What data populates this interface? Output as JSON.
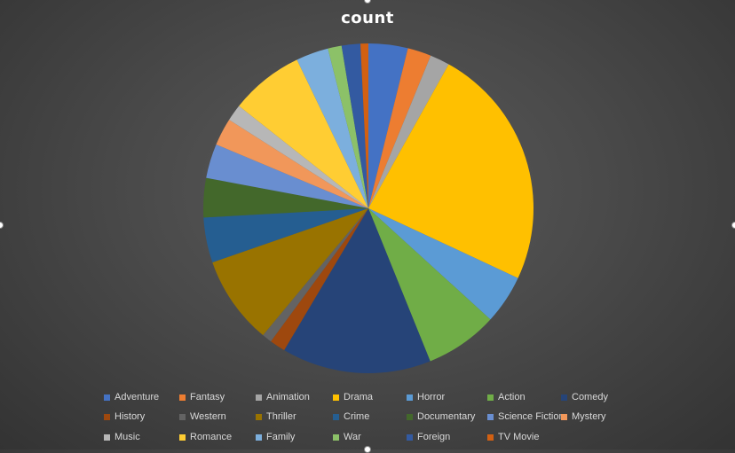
{
  "chart_data": {
    "type": "pie",
    "title": "count",
    "legend_position": "bottom",
    "categories": [
      "Adventure",
      "Fantasy",
      "Animation",
      "Drama",
      "Horror",
      "Action",
      "Comedy",
      "History",
      "Western",
      "Thriller",
      "Crime",
      "Documentary",
      "Science Fiction",
      "Mystery",
      "Music",
      "Romance",
      "Family",
      "War",
      "Foreign",
      "TV Movie"
    ],
    "values": [
      4.0,
      2.4,
      2.0,
      24.8,
      5.0,
      7.4,
      15.2,
      1.6,
      1.0,
      9.0,
      4.6,
      4.0,
      3.5,
      2.8,
      1.7,
      7.5,
      3.3,
      1.4,
      1.9,
      0.8
    ],
    "colors": [
      "#4472C4",
      "#ED7D31",
      "#A5A5A5",
      "#FFC000",
      "#5B9BD5",
      "#70AD47",
      "#264478",
      "#9E480E",
      "#636363",
      "#997300",
      "#255E91",
      "#43682B",
      "#698ED0",
      "#F1975A",
      "#B7B7B7",
      "#FFCD33",
      "#7CAFDD",
      "#8CC168",
      "#335AA1",
      "#D26012"
    ]
  }
}
